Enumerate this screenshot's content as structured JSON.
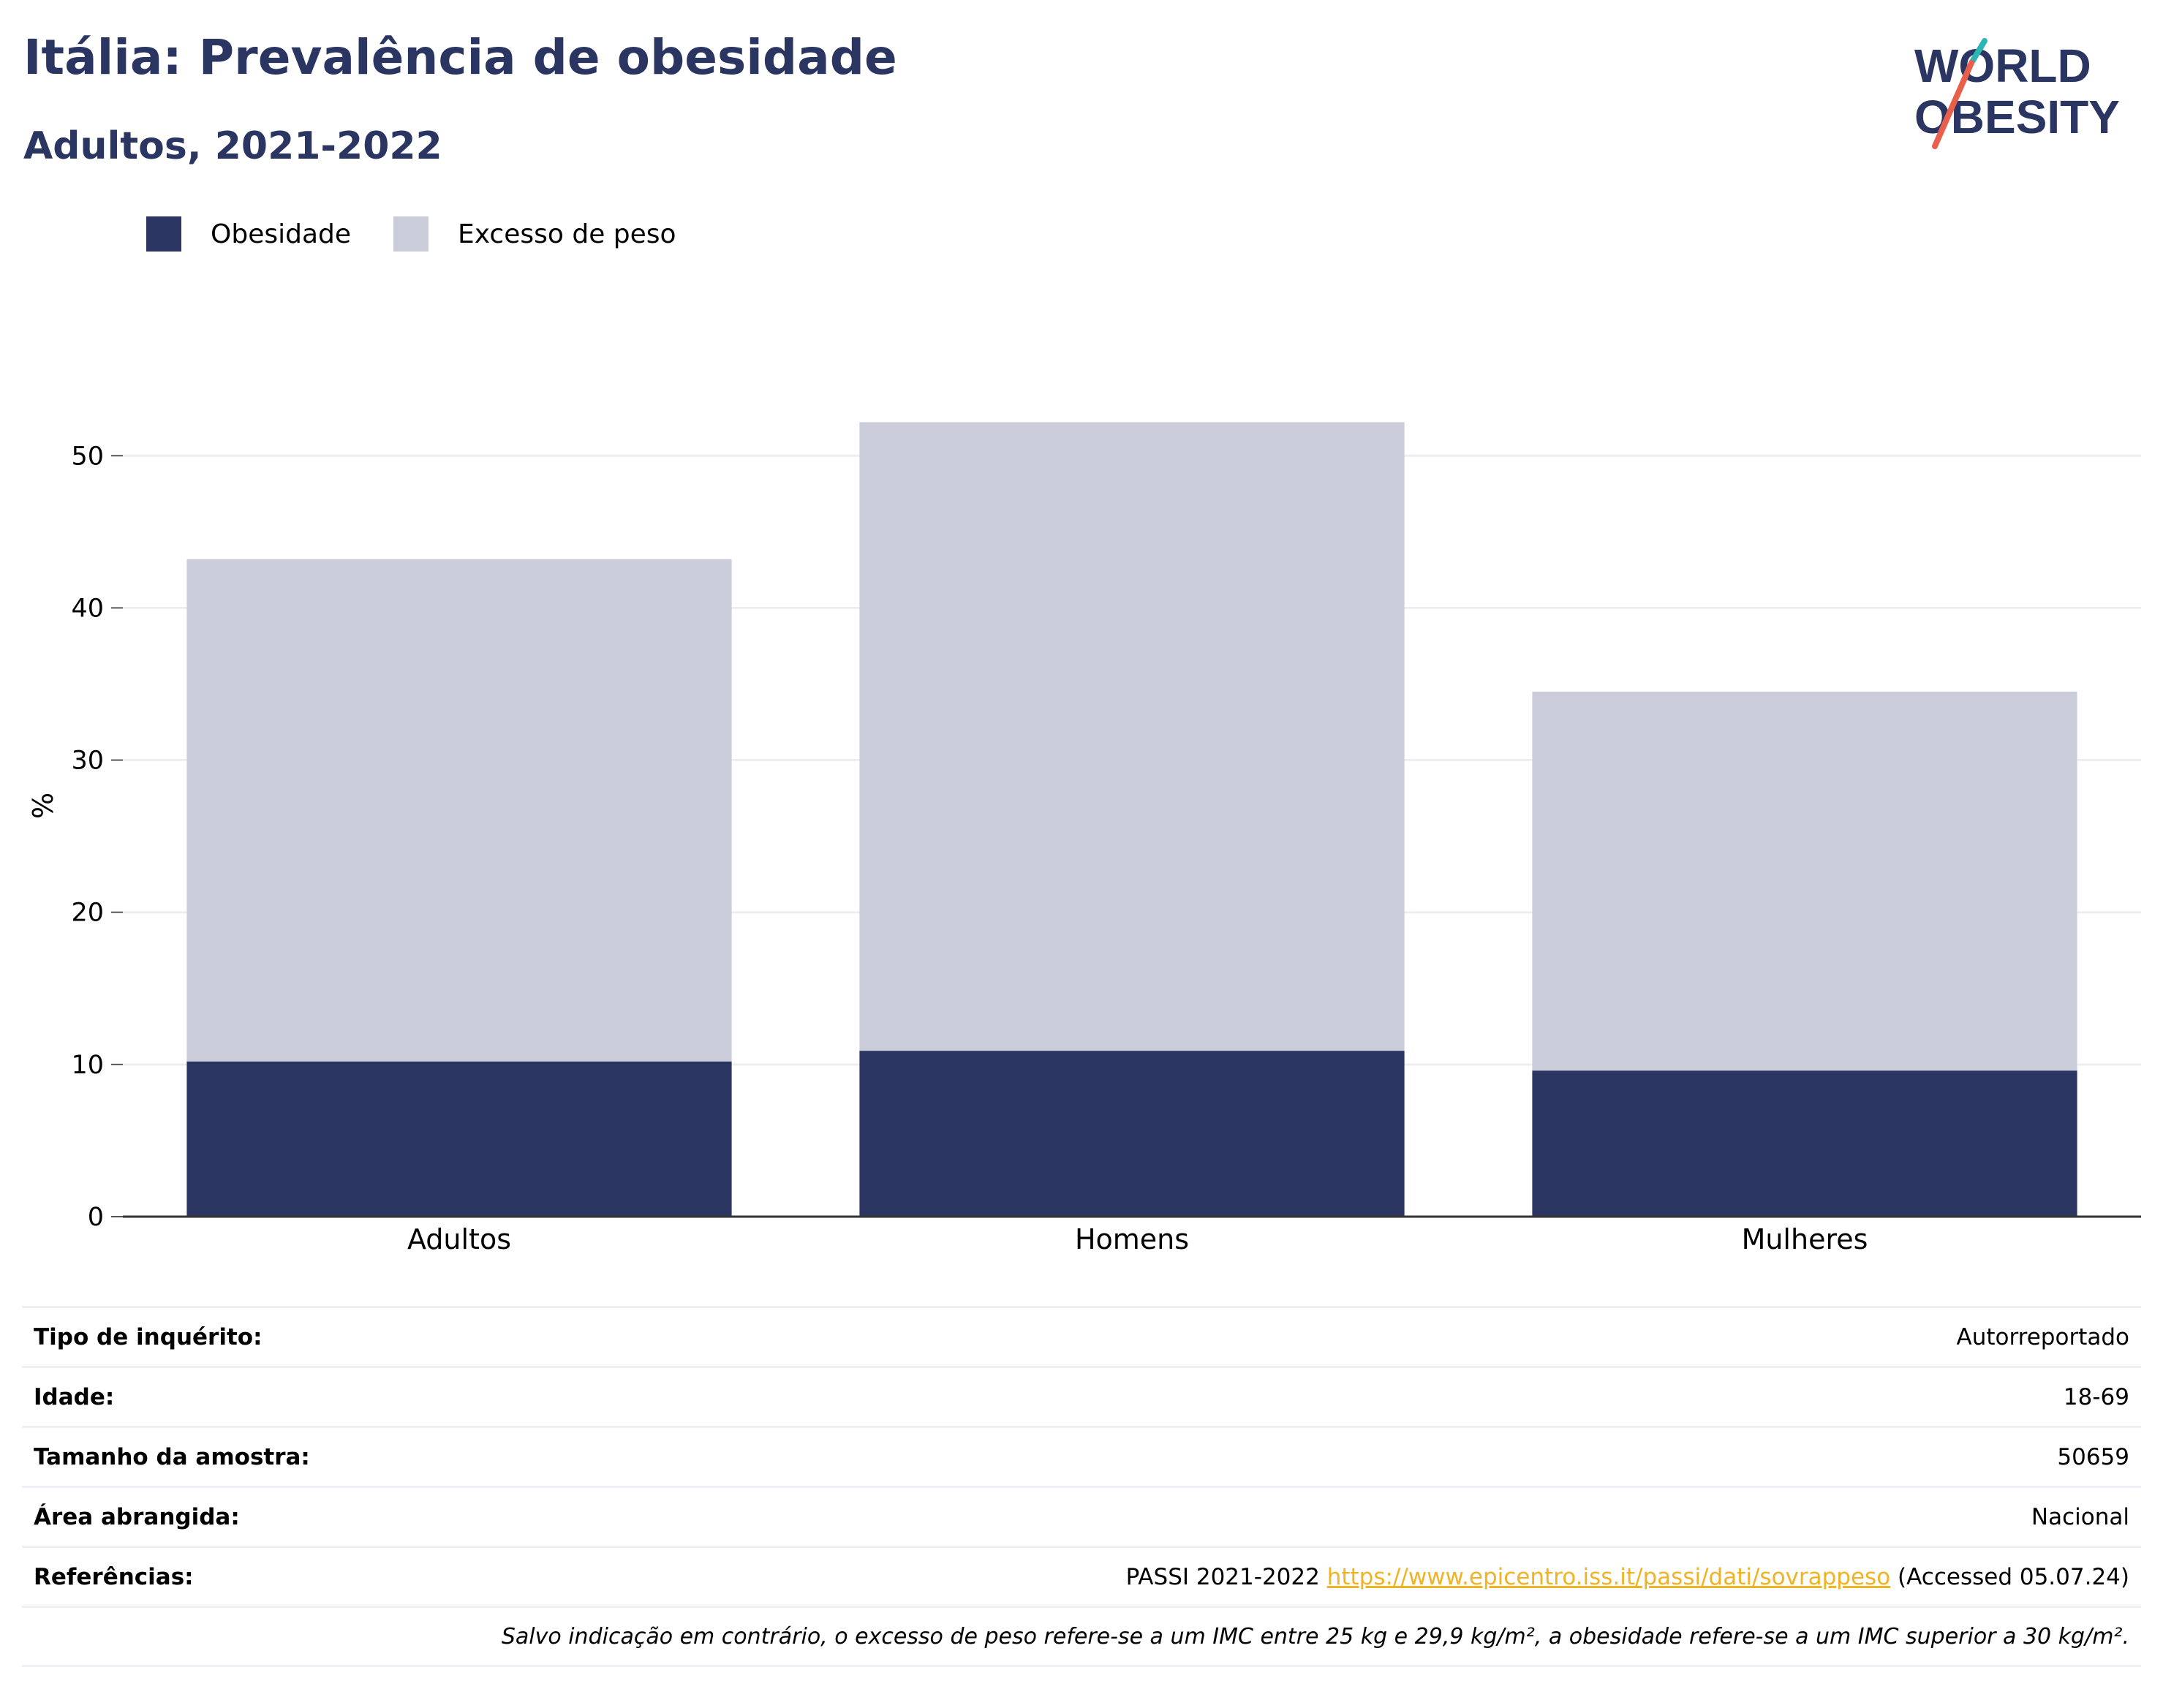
{
  "header": {
    "title": "Itália: Prevalência de obesidade",
    "subtitle": "Adultos, 2021-2022"
  },
  "logo": {
    "line1": "WORLD",
    "line2": "OBESITY"
  },
  "colors": {
    "brand": "#2b3562",
    "obesity": "#2b3562",
    "overweight": "#cacdd9",
    "link": "#f0b323",
    "logo_accent_teal": "#2ab7b4",
    "logo_accent_red": "#e8604c"
  },
  "chart_data": {
    "type": "bar",
    "stacked": true,
    "categories": [
      "Adultos",
      "Homens",
      "Mulheres"
    ],
    "series": [
      {
        "name": "Obesidade",
        "values": [
          10.2,
          10.9,
          9.6
        ]
      },
      {
        "name": "Excesso de peso",
        "values": [
          33.0,
          41.3,
          24.9
        ]
      }
    ],
    "ylabel": "%",
    "ylim": [
      0,
      54
    ],
    "yticks": [
      0,
      10,
      20,
      30,
      40,
      50
    ],
    "grid": true,
    "legend": "top-left"
  },
  "info": {
    "rows": [
      {
        "label": "Tipo de inquérito:",
        "value": "Autorreportado"
      },
      {
        "label": "Idade:",
        "value": "18-69"
      },
      {
        "label": "Tamanho da amostra:",
        "value": "50659"
      },
      {
        "label": "Área abrangida:",
        "value": "Nacional"
      }
    ],
    "references": {
      "label": "Referências:",
      "prefix": "PASSI 2021-2022",
      "link": "https://www.epicentro.iss.it/passi/dati/sovrappeso",
      "suffix": "(Accessed 05.07.24)"
    },
    "note": "Salvo indicação em contrário, o excesso de peso refere-se a um IMC entre 25 kg e 29,9 kg/m², a obesidade refere-se a um IMC superior a 30 kg/m²."
  }
}
